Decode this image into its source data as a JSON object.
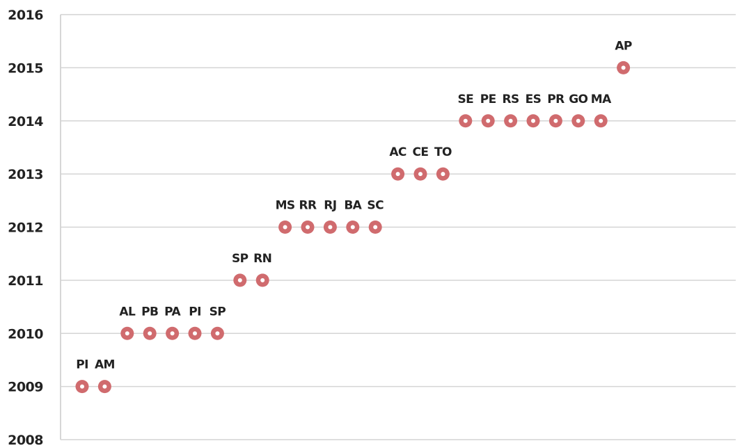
{
  "chart_data": {
    "type": "scatter",
    "title": "",
    "xlabel": "",
    "ylabel": "",
    "ylim": [
      2008,
      2016
    ],
    "yticks": [
      2008,
      2009,
      2010,
      2011,
      2012,
      2013,
      2014,
      2015,
      2016
    ],
    "grid": true,
    "legend": "none",
    "marker_color": "#d06b6e",
    "points": [
      {
        "label": "PI",
        "y": 2009
      },
      {
        "label": "AM",
        "y": 2009
      },
      {
        "label": "AL",
        "y": 2010
      },
      {
        "label": "PB",
        "y": 2010
      },
      {
        "label": "PA",
        "y": 2010
      },
      {
        "label": "PI",
        "y": 2010
      },
      {
        "label": "SP",
        "y": 2010
      },
      {
        "label": "SP",
        "y": 2011
      },
      {
        "label": "RN",
        "y": 2011
      },
      {
        "label": "MS",
        "y": 2012
      },
      {
        "label": "RR",
        "y": 2012
      },
      {
        "label": "RJ",
        "y": 2012
      },
      {
        "label": "BA",
        "y": 2012
      },
      {
        "label": "SC",
        "y": 2012
      },
      {
        "label": "AC",
        "y": 2013
      },
      {
        "label": "CE",
        "y": 2013
      },
      {
        "label": "TO",
        "y": 2013
      },
      {
        "label": "SE",
        "y": 2014
      },
      {
        "label": "PE",
        "y": 2014
      },
      {
        "label": "RS",
        "y": 2014
      },
      {
        "label": "ES",
        "y": 2014
      },
      {
        "label": "PR",
        "y": 2014
      },
      {
        "label": "GO",
        "y": 2014
      },
      {
        "label": "MA",
        "y": 2014
      },
      {
        "label": "AP",
        "y": 2015
      }
    ]
  }
}
